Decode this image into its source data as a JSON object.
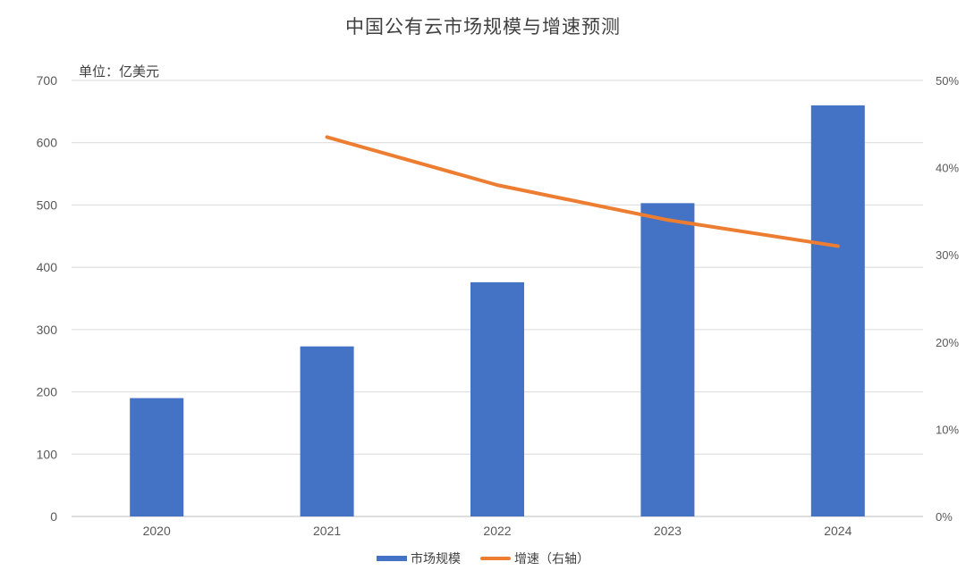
{
  "chart_data": {
    "type": "bar",
    "title": "中国公有云市场规模与增速预测",
    "unit_label": "单位：亿美元",
    "categories": [
      "2020",
      "2021",
      "2022",
      "2023",
      "2024"
    ],
    "series": [
      {
        "name": "市场规模",
        "type": "bar",
        "axis": "left",
        "color": "#4472C4",
        "values": [
          190,
          273,
          376,
          503,
          660
        ]
      },
      {
        "name": "增速（右轴）",
        "type": "line",
        "axis": "right",
        "color": "#ED7D31",
        "values": [
          null,
          43.5,
          38.0,
          34.0,
          31.0
        ]
      }
    ],
    "y_left": {
      "min": 0,
      "max": 700,
      "ticks": [
        "0",
        "100",
        "200",
        "300",
        "400",
        "500",
        "600",
        "700"
      ]
    },
    "y_right": {
      "min": 0,
      "max": 50,
      "ticks": [
        "0%",
        "10%",
        "20%",
        "30%",
        "40%",
        "50%"
      ]
    },
    "grid": true,
    "legend_position": "bottom"
  }
}
